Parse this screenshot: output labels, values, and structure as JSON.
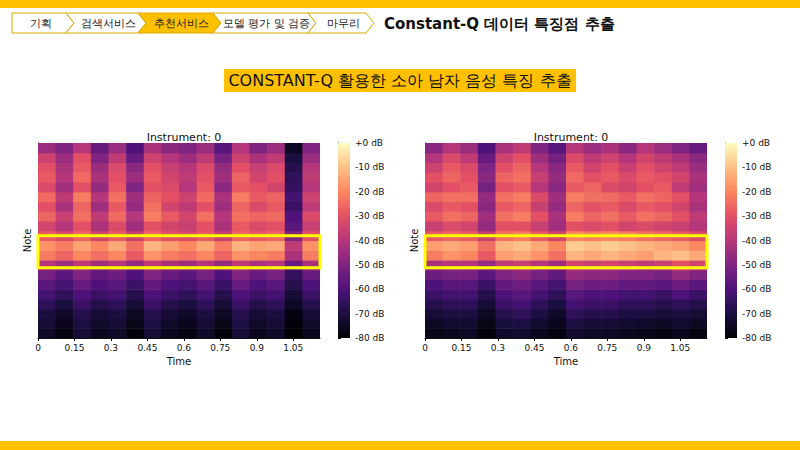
{
  "slide": {
    "nav": [
      "기획",
      "검색서비스",
      "추천서비스",
      "모델 평가 및 검증",
      "마무리"
    ],
    "active": "추천서비스",
    "title": "Constant-Q 데이터 특징점 추출",
    "subtitle": "CONSTANT-Q 활용한 소아 남자 음성 특징 추출"
  },
  "chart_data": [
    {
      "type": "heatmap",
      "title": "Instrument: 0",
      "x_label": "Time",
      "y_label": "Note",
      "xlim": [
        0,
        1.16
      ],
      "ylim": [
        0,
        20
      ],
      "xticks": [
        0,
        0.15,
        0.3,
        0.45,
        0.6,
        0.75,
        0.9,
        1.05
      ],
      "tick_labels": "x",
      "x_edges": [
        0,
        0.0725,
        0.145,
        0.2175,
        0.29,
        0.3625,
        0.435,
        0.5075,
        0.58,
        0.6525,
        0.725,
        0.7975,
        0.87,
        0.9425,
        1.015,
        1.0875,
        1.16
      ],
      "y_edges": [
        0,
        1,
        2,
        3,
        4,
        5,
        6,
        7,
        8,
        9,
        10,
        11,
        12,
        13,
        14,
        15,
        16,
        17,
        18,
        19,
        20
      ],
      "cells": [
        [
          -74,
          -78,
          -72,
          -76,
          -74,
          -79,
          -72,
          -76,
          -78,
          -74,
          -79,
          -72,
          -76,
          -74,
          -80,
          -76
        ],
        [
          -72,
          -76,
          -70,
          -74,
          -72,
          -77,
          -70,
          -74,
          -76,
          -72,
          -77,
          -70,
          -74,
          -72,
          -79,
          -74
        ],
        [
          -70,
          -74,
          -68,
          -72,
          -70,
          -75,
          -68,
          -72,
          -74,
          -70,
          -75,
          -68,
          -72,
          -70,
          -78,
          -72
        ],
        [
          -66,
          -70,
          -64,
          -68,
          -66,
          -72,
          -64,
          -68,
          -70,
          -66,
          -72,
          -64,
          -68,
          -66,
          -75,
          -68
        ],
        [
          -62,
          -66,
          -60,
          -64,
          -62,
          -68,
          -60,
          -64,
          -66,
          -62,
          -68,
          -60,
          -64,
          -62,
          -72,
          -64
        ],
        [
          -58,
          -62,
          -55,
          -60,
          -58,
          -64,
          -56,
          -60,
          -62,
          -58,
          -64,
          -55,
          -60,
          -58,
          -68,
          -60
        ],
        [
          -52,
          -58,
          -50,
          -56,
          -54,
          -60,
          -50,
          -55,
          -58,
          -52,
          -60,
          -50,
          -55,
          -52,
          -65,
          -55
        ],
        [
          -40,
          -45,
          -38,
          -44,
          -40,
          -46,
          -38,
          -42,
          -44,
          -40,
          -46,
          -38,
          -42,
          -40,
          -55,
          -42
        ],
        [
          -22,
          -26,
          -20,
          -24,
          -20,
          -28,
          -18,
          -22,
          -24,
          -20,
          -26,
          -18,
          -20,
          -22,
          -42,
          -22
        ],
        [
          -18,
          -22,
          -15,
          -20,
          -14,
          -24,
          -12,
          -16,
          -20,
          -14,
          -22,
          -12,
          -15,
          -14,
          -38,
          -18
        ],
        [
          -28,
          -32,
          -26,
          -34,
          -28,
          -36,
          -26,
          -30,
          -32,
          -28,
          -36,
          -26,
          -28,
          -26,
          -50,
          -30
        ],
        [
          -34,
          -40,
          -30,
          -42,
          -32,
          -44,
          -30,
          -34,
          -36,
          -30,
          -42,
          -28,
          -32,
          -30,
          -58,
          -36
        ],
        [
          -26,
          -36,
          -24,
          -38,
          -25,
          -40,
          -22,
          -28,
          -34,
          -24,
          -40,
          -24,
          -26,
          -25,
          -60,
          -32
        ],
        [
          -30,
          -42,
          -26,
          -44,
          -28,
          -46,
          -24,
          -34,
          -38,
          -30,
          -44,
          -26,
          -32,
          -28,
          -64,
          -38
        ],
        [
          -25,
          -38,
          -22,
          -40,
          -24,
          -44,
          -26,
          -30,
          -35,
          -25,
          -42,
          -22,
          -28,
          -26,
          -62,
          -35
        ],
        [
          -32,
          -44,
          -30,
          -46,
          -28,
          -50,
          -30,
          -32,
          -40,
          -28,
          -48,
          -28,
          -30,
          -34,
          -65,
          -40
        ],
        [
          -28,
          -40,
          -25,
          -42,
          -30,
          -45,
          -28,
          -34,
          -38,
          -30,
          -44,
          -26,
          -34,
          -30,
          -66,
          -38
        ],
        [
          -30,
          -42,
          -28,
          -45,
          -32,
          -48,
          -30,
          -36,
          -40,
          -32,
          -46,
          -30,
          -36,
          -32,
          -68,
          -40
        ],
        [
          -35,
          -45,
          -30,
          -50,
          -38,
          -55,
          -35,
          -40,
          -45,
          -38,
          -52,
          -35,
          -42,
          -38,
          -70,
          -45
        ],
        [
          -45,
          -50,
          -40,
          -55,
          -45,
          -60,
          -42,
          -48,
          -50,
          -45,
          -58,
          -40,
          -50,
          -45,
          -75,
          -50
        ]
      ],
      "colorbar": {
        "range": [
          -80,
          0
        ],
        "ticks": [
          {
            "value": 0,
            "label": "+0 dB"
          },
          {
            "value": -10,
            "label": "-10 dB"
          },
          {
            "value": -20,
            "label": "-20 dB"
          },
          {
            "value": -30,
            "label": "-30 dB"
          },
          {
            "value": -40,
            "label": "-40 dB"
          },
          {
            "value": -50,
            "label": "-50 dB"
          },
          {
            "value": -60,
            "label": "-60 dB"
          },
          {
            "value": -70,
            "label": "-70 dB"
          },
          {
            "value": -80,
            "label": "-80 dB"
          }
        ]
      },
      "highlight": {
        "x": [
          0,
          1.16
        ],
        "y": [
          7.2,
          10.5
        ]
      }
    },
    {
      "type": "heatmap",
      "title": "Instrument: 0",
      "x_label": "Time",
      "y_label": "Note",
      "xlim": [
        0,
        1.16
      ],
      "ylim": [
        0,
        20
      ],
      "xticks": [
        0,
        0.15,
        0.3,
        0.45,
        0.6,
        0.75,
        0.9,
        1.05
      ],
      "tick_labels": "x",
      "x_edges": [
        0,
        0.0725,
        0.145,
        0.2175,
        0.29,
        0.3625,
        0.435,
        0.5075,
        0.58,
        0.6525,
        0.725,
        0.7975,
        0.87,
        0.9425,
        1.015,
        1.0875,
        1.16
      ],
      "y_edges": [
        0,
        1,
        2,
        3,
        4,
        5,
        6,
        7,
        8,
        9,
        10,
        11,
        12,
        13,
        14,
        15,
        16,
        17,
        18,
        19,
        20
      ],
      "cells": [
        [
          -77,
          -76,
          -75,
          -79,
          -74,
          -73,
          -76,
          -78,
          -73,
          -75,
          -75,
          -76,
          -77,
          -78,
          -76,
          -78
        ],
        [
          -75,
          -73,
          -73,
          -77,
          -71,
          -70,
          -73,
          -76,
          -70,
          -72,
          -72,
          -73,
          -74,
          -75,
          -73,
          -75
        ],
        [
          -72,
          -70,
          -70,
          -75,
          -68,
          -66,
          -70,
          -74,
          -66,
          -68,
          -68,
          -70,
          -70,
          -72,
          -70,
          -72
        ],
        [
          -68,
          -66,
          -66,
          -72,
          -64,
          -62,
          -66,
          -70,
          -62,
          -64,
          -64,
          -66,
          -66,
          -68,
          -66,
          -68
        ],
        [
          -64,
          -62,
          -62,
          -68,
          -60,
          -58,
          -62,
          -66,
          -58,
          -60,
          -60,
          -62,
          -62,
          -64,
          -60,
          -64
        ],
        [
          -60,
          -58,
          -58,
          -64,
          -56,
          -54,
          -58,
          -62,
          -52,
          -54,
          -54,
          -56,
          -56,
          -58,
          -54,
          -58
        ],
        [
          -54,
          -52,
          -52,
          -58,
          -50,
          -48,
          -52,
          -56,
          -46,
          -48,
          -48,
          -50,
          -50,
          -52,
          -46,
          -50
        ],
        [
          -42,
          -40,
          -40,
          -46,
          -38,
          -36,
          -40,
          -44,
          -34,
          -36,
          -34,
          -36,
          -38,
          -36,
          -30,
          -34
        ],
        [
          -22,
          -18,
          -20,
          -28,
          -16,
          -14,
          -18,
          -24,
          -12,
          -14,
          -12,
          -14,
          -16,
          -12,
          -10,
          -14
        ],
        [
          -16,
          -14,
          -16,
          -24,
          -12,
          -10,
          -14,
          -20,
          -8,
          -10,
          -8,
          -10,
          -12,
          -14,
          -16,
          -20
        ],
        [
          -28,
          -26,
          -28,
          -36,
          -24,
          -22,
          -28,
          -34,
          -20,
          -22,
          -20,
          -22,
          -24,
          -26,
          -28,
          -32
        ],
        [
          -36,
          -32,
          -34,
          -46,
          -30,
          -30,
          -36,
          -44,
          -30,
          -32,
          -30,
          -34,
          -32,
          -34,
          -36,
          -40
        ],
        [
          -28,
          -24,
          -26,
          -44,
          -24,
          -22,
          -30,
          -42,
          -22,
          -26,
          -24,
          -28,
          -24,
          -26,
          -30,
          -38
        ],
        [
          -32,
          -28,
          -30,
          -48,
          -28,
          -26,
          -36,
          -46,
          -26,
          -30,
          -28,
          -32,
          -28,
          -30,
          -34,
          -42
        ],
        [
          -26,
          -24,
          -24,
          -46,
          -24,
          -22,
          -32,
          -44,
          -22,
          -24,
          -25,
          -28,
          -24,
          -26,
          -30,
          -40
        ],
        [
          -34,
          -30,
          -28,
          -52,
          -30,
          -28,
          -40,
          -48,
          -28,
          -26,
          -32,
          -34,
          -30,
          -28,
          -38,
          -44
        ],
        [
          -30,
          -26,
          -30,
          -48,
          -26,
          -24,
          -36,
          -46,
          -25,
          -30,
          -28,
          -32,
          -28,
          -30,
          -34,
          -42
        ],
        [
          -35,
          -28,
          -32,
          -50,
          -30,
          -26,
          -40,
          -48,
          -28,
          -34,
          -30,
          -36,
          -30,
          -34,
          -38,
          -45
        ],
        [
          -40,
          -32,
          -38,
          -55,
          -35,
          -30,
          -44,
          -52,
          -32,
          -38,
          -35,
          -40,
          -34,
          -38,
          -42,
          -48
        ],
        [
          -48,
          -40,
          -45,
          -60,
          -42,
          -38,
          -50,
          -58,
          -40,
          -45,
          -42,
          -48,
          -40,
          -45,
          -50,
          -55
        ]
      ],
      "colorbar": {
        "range": [
          -80,
          0
        ],
        "ticks": [
          {
            "value": 0,
            "label": "+0 dB"
          },
          {
            "value": -10,
            "label": "-10 dB"
          },
          {
            "value": -20,
            "label": "-20 dB"
          },
          {
            "value": -30,
            "label": "-30 dB"
          },
          {
            "value": -40,
            "label": "-40 dB"
          },
          {
            "value": -50,
            "label": "-50 dB"
          },
          {
            "value": -60,
            "label": "-60 dB"
          },
          {
            "value": -70,
            "label": "-70 dB"
          },
          {
            "value": -80,
            "label": "-80 dB"
          }
        ]
      },
      "highlight": {
        "x": [
          0,
          1.16
        ],
        "y": [
          7.2,
          10.5
        ]
      }
    }
  ]
}
